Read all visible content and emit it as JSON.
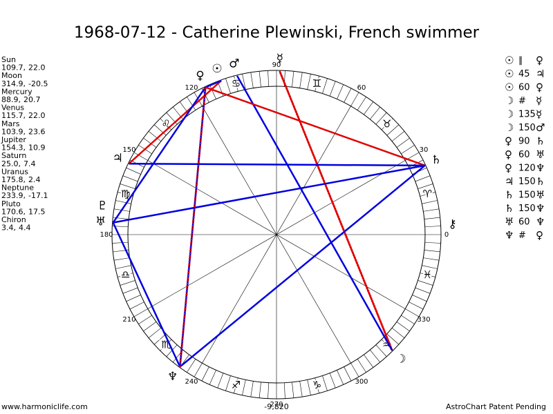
{
  "title": "1968-07-12 - Catherine Plewinski, French swimmer",
  "planets": [
    {
      "name": "Sun",
      "glyph": "☉",
      "lon": {
        "value": 109.7,
        "label": "109.7,"
      },
      "decl": {
        "value": 22,
        "label": "22.0"
      }
    },
    {
      "name": "Moon",
      "glyph": "☽",
      "lon": {
        "value": 314.9,
        "label": "314.9,"
      },
      "decl": -20.5
    },
    {
      "name": "Mercury",
      "glyph": "☿",
      "lon": {
        "value": 88.9,
        "label": "88.9,"
      },
      "decl": 20.7
    },
    {
      "name": "Venus",
      "glyph": "♀",
      "lon": {
        "value": 115.7,
        "label": "115.7,"
      },
      "decl": {
        "value": 22,
        "label": "22.0"
      }
    },
    {
      "name": "Mars",
      "glyph": "♂",
      "lon": {
        "value": 103.9,
        "label": "103.9,"
      },
      "decl": 23.6
    },
    {
      "name": "Jupiter",
      "glyph": "♃",
      "lon": {
        "value": 154.3,
        "label": "154.3,"
      },
      "decl": 10.9
    },
    {
      "name": "Saturn",
      "glyph": "♄",
      "lon": {
        "value": 25,
        "label": "25.0,"
      },
      "decl": 7.4
    },
    {
      "name": "Uranus",
      "glyph": "♅",
      "lon": {
        "value": 175.8,
        "label": "175.8,"
      },
      "decl": 2.4
    },
    {
      "name": "Neptune",
      "glyph": "♆",
      "lon": {
        "value": 233.9,
        "label": "233.9,"
      },
      "decl": -17.1
    },
    {
      "name": "Pluto",
      "glyph": "♇",
      "lon": {
        "value": 170.6,
        "label": "170.6,"
      },
      "decl": 17.5
    },
    {
      "name": "Chiron",
      "glyph": "⚷",
      "lon": {
        "value": 3.4,
        "label": "3.4,"
      },
      "decl": 4.4
    }
  ],
  "aspects": [
    {
      "a": "☉",
      "sym": "∥",
      "b": "♀",
      "color": "#d4a017"
    },
    {
      "a": "☉",
      "sym": 45,
      "b": "♃",
      "color": "#e00000"
    },
    {
      "a": "☉",
      "sym": 60,
      "b": "♀",
      "color": "#0000e0"
    },
    {
      "a": "☽",
      "sym": "#",
      "b": "☿",
      "color": "#e00000",
      "dotted": true
    },
    {
      "a": "☽",
      "sym": 135,
      "b": "☿",
      "color": "#e00000"
    },
    {
      "a": "☽",
      "sym": 150,
      "b": "♂",
      "color": "#0000e0"
    },
    {
      "a": "♀",
      "sym": 90,
      "b": "♄",
      "color": "#e00000"
    },
    {
      "a": "♀",
      "sym": 60,
      "b": "♅",
      "color": "#0000e0"
    },
    {
      "a": "♀",
      "sym": 120,
      "b": "♆",
      "color": "#0000e0"
    },
    {
      "a": "♃",
      "sym": 150,
      "b": "♄",
      "color": "#0000e0"
    },
    {
      "a": "♄",
      "sym": 150,
      "b": "♅",
      "color": "#0000e0"
    },
    {
      "a": "♄",
      "sym": 150,
      "b": "♆",
      "color": "#0000e0"
    },
    {
      "a": "♅",
      "sym": 60,
      "b": "♆",
      "color": "#0000e0"
    },
    {
      "a": "♆",
      "sym": "#",
      "b": "♀",
      "color": "#e00000",
      "dotted": true
    }
  ],
  "signs": [
    "♈",
    "♉",
    "♊",
    "♋",
    "♌",
    "♍",
    "♎",
    "♏",
    "♐",
    "♑",
    "♒",
    "♓"
  ],
  "degree_labels": [
    0,
    30,
    60,
    90,
    120,
    150,
    180,
    210,
    240,
    270,
    300,
    330
  ],
  "bottom_value": "-9,820",
  "footer_left": "www.harmoniclife.com",
  "footer_right": "AstroChart Patent Pending"
}
